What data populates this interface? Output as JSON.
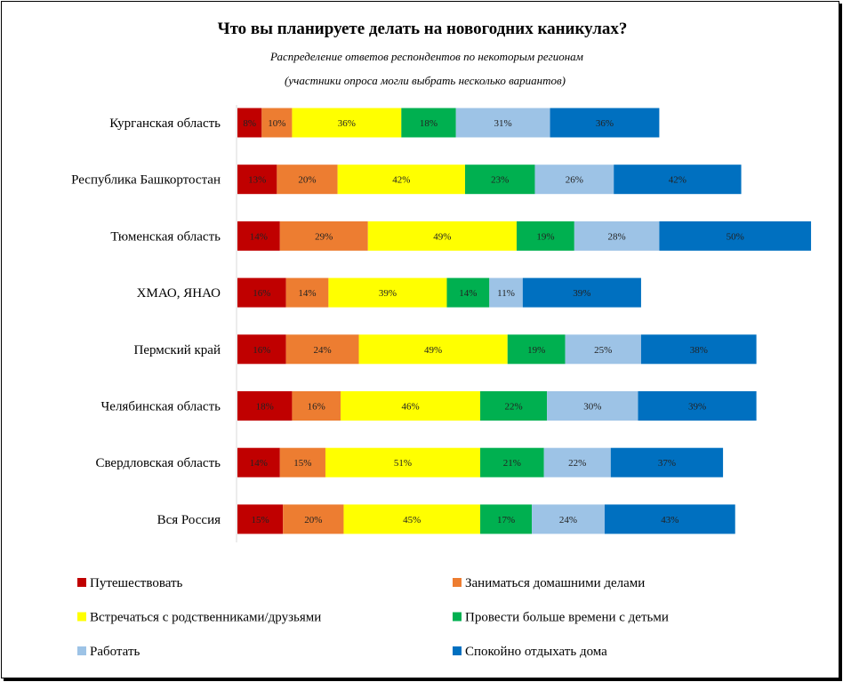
{
  "chart_data": {
    "type": "bar",
    "orientation": "horizontal",
    "stacked": true,
    "title": "Что вы планируете делать на новогодних каникулах?",
    "subtitle": "Распределение ответов респондентов по некоторым регионам",
    "note": "(участники опроса могли выбрать несколько вариантов)",
    "categories": [
      "Курганская область",
      "Республика Башкортостан",
      "Тюменская область",
      "ХМАО, ЯНАО",
      "Пермский край",
      "Челябинская область",
      "Свердловская область",
      "Вся Россия"
    ],
    "series": [
      {
        "name": "Путешествовать",
        "color": "#C00000",
        "values": [
          8,
          13,
          14,
          16,
          16,
          18,
          14,
          15
        ]
      },
      {
        "name": "Заниматься домашними делами",
        "color": "#ED7D31",
        "values": [
          10,
          20,
          29,
          14,
          24,
          16,
          15,
          20
        ]
      },
      {
        "name": "Встречаться с родственниками/друзьями",
        "color": "#FFFF00",
        "values": [
          36,
          42,
          49,
          39,
          49,
          46,
          51,
          45
        ]
      },
      {
        "name": "Провести больше времени с детьми",
        "color": "#00B050",
        "values": [
          18,
          23,
          19,
          14,
          19,
          22,
          21,
          17
        ]
      },
      {
        "name": "Работать",
        "color": "#9DC3E6",
        "values": [
          31,
          26,
          28,
          11,
          25,
          30,
          22,
          24
        ]
      },
      {
        "name": "Спокойно отдыхать дома",
        "color": "#0070C0",
        "values": [
          36,
          42,
          50,
          39,
          38,
          39,
          37,
          43
        ]
      }
    ],
    "value_suffix": "%",
    "data_labels": true,
    "grid": false,
    "legend_position": "bottom"
  }
}
